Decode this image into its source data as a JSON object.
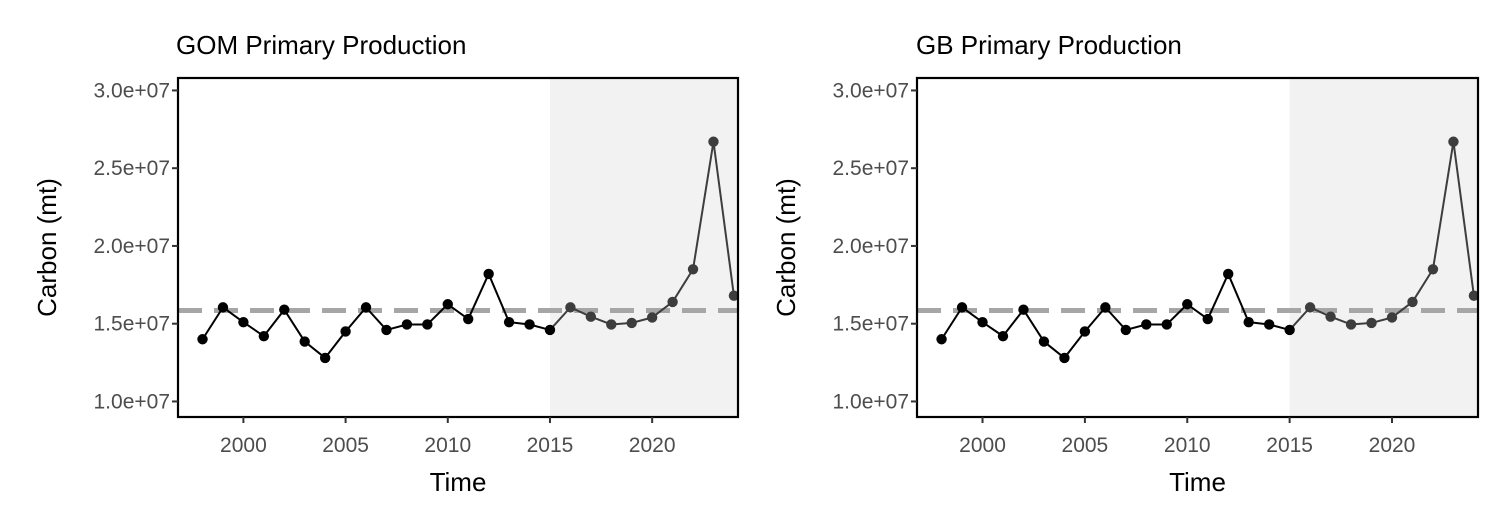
{
  "chart_data": [
    {
      "type": "line",
      "title": "GOM Primary Production",
      "xlabel": "Time",
      "ylabel": "Carbon (mt)",
      "xlim": [
        1996.8,
        2024.2
      ],
      "ylim": [
        9000000,
        30800000
      ],
      "x_ticks": [
        2000,
        2005,
        2010,
        2015,
        2020
      ],
      "x_tick_labels": [
        "2000",
        "2005",
        "2010",
        "2015",
        "2020"
      ],
      "y_ticks": [
        10000000,
        15000000,
        20000000,
        25000000,
        30000000
      ],
      "y_tick_labels": [
        "1.0e+07",
        "1.5e+07",
        "2.0e+07",
        "2.5e+07",
        "3.0e+07"
      ],
      "reference_line": 15850000,
      "shaded_region": [
        2015,
        2024.2
      ],
      "grid": false,
      "colors": {
        "line": "#000000",
        "recent_line": "#3d3d3d",
        "reference": "#a6a6a6",
        "shade": "#f2f2f2"
      },
      "x": [
        1998,
        1999,
        2000,
        2001,
        2002,
        2003,
        2004,
        2005,
        2006,
        2007,
        2008,
        2009,
        2010,
        2011,
        2012,
        2013,
        2014,
        2015,
        2016,
        2017,
        2018,
        2019,
        2020,
        2021,
        2022,
        2023,
        2024
      ],
      "series": [
        {
          "values": [
            14000000,
            16050000,
            15100000,
            14200000,
            15900000,
            13850000,
            12800000,
            14500000,
            16050000,
            14600000,
            14950000,
            14950000,
            16250000,
            15300000,
            18200000,
            15100000,
            14950000,
            14600000,
            16050000,
            15450000,
            14950000,
            15050000,
            15400000,
            16400000,
            18500000,
            26700000,
            16800000
          ]
        }
      ]
    },
    {
      "type": "line",
      "title": "GB Primary Production",
      "xlabel": "Time",
      "ylabel": "Carbon (mt)",
      "xlim": [
        1996.8,
        2024.2
      ],
      "ylim": [
        9000000,
        30800000
      ],
      "x_ticks": [
        2000,
        2005,
        2010,
        2015,
        2020
      ],
      "x_tick_labels": [
        "2000",
        "2005",
        "2010",
        "2015",
        "2020"
      ],
      "y_ticks": [
        10000000,
        15000000,
        20000000,
        25000000,
        30000000
      ],
      "y_tick_labels": [
        "1.0e+07",
        "1.5e+07",
        "2.0e+07",
        "2.5e+07",
        "3.0e+07"
      ],
      "reference_line": 15850000,
      "shaded_region": [
        2015,
        2024.2
      ],
      "grid": false,
      "colors": {
        "line": "#000000",
        "recent_line": "#3d3d3d",
        "reference": "#a6a6a6",
        "shade": "#f2f2f2"
      },
      "x": [
        1998,
        1999,
        2000,
        2001,
        2002,
        2003,
        2004,
        2005,
        2006,
        2007,
        2008,
        2009,
        2010,
        2011,
        2012,
        2013,
        2014,
        2015,
        2016,
        2017,
        2018,
        2019,
        2020,
        2021,
        2022,
        2023,
        2024
      ],
      "series": [
        {
          "values": [
            14000000,
            16050000,
            15100000,
            14200000,
            15900000,
            13850000,
            12800000,
            14500000,
            16050000,
            14600000,
            14950000,
            14950000,
            16250000,
            15300000,
            18200000,
            15100000,
            14950000,
            14600000,
            16050000,
            15450000,
            14950000,
            15050000,
            15400000,
            16400000,
            18500000,
            26700000,
            16800000
          ]
        }
      ]
    }
  ]
}
